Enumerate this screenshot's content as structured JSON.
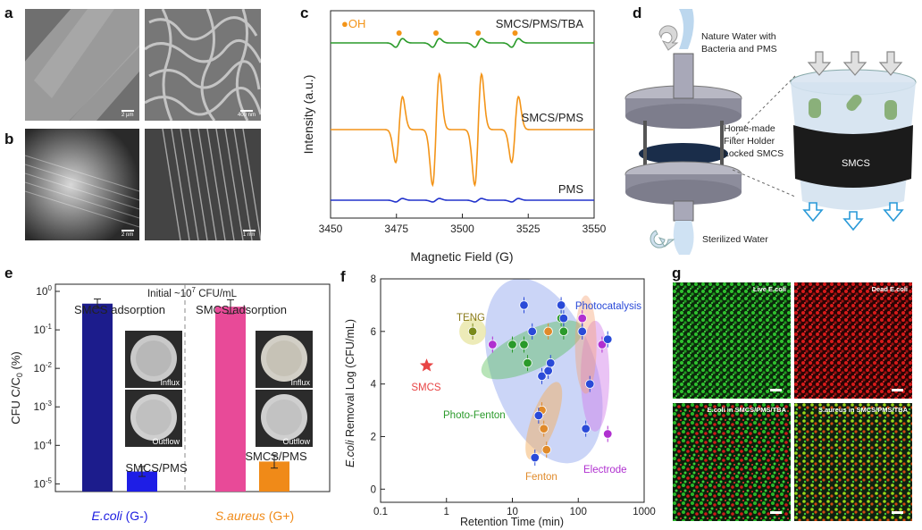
{
  "panel_letters": [
    "a",
    "b",
    "c",
    "d",
    "e",
    "f",
    "g"
  ],
  "panel_a": {
    "scale_left": "2 µm",
    "scale_right": "400 nm"
  },
  "panel_b": {
    "scale_left": "2 nm",
    "scale_right": "1 nm"
  },
  "panel_c": {
    "legend": "●OH",
    "ylabel": "Intensity (a.u.)",
    "xlabel": "Magnetic Field (G)",
    "ticks": [
      "3450",
      "3475",
      "3500",
      "3525",
      "3550"
    ],
    "curve_labels": [
      "SMCS/PMS/TBA",
      "SMCS/PMS",
      "PMS"
    ]
  },
  "panel_d": {
    "labels": [
      "Nature Water with",
      "Bacteria and PMS",
      "Home-made",
      "Filter Holder",
      "Locked SMCS",
      "Sterilized Water",
      "SMCS"
    ]
  },
  "panel_e": {
    "header_prefix": "Initial ~10",
    "header_exp": "7",
    "header_suffix": " CFU/mL",
    "ylabel_main": "CFU C/C",
    "ylabel_sub": "0",
    "ylabel_tail": " (%)",
    "yticks": [
      {
        "base": "10",
        "exp": "0"
      },
      {
        "base": "10",
        "exp": "-1"
      },
      {
        "base": "10",
        "exp": "-2"
      },
      {
        "base": "10",
        "exp": "-3"
      },
      {
        "base": "10",
        "exp": "-4"
      },
      {
        "base": "10",
        "exp": "-5"
      }
    ],
    "bar_labels": [
      "SMCS adsorption",
      "SMCS adsorption",
      "SMCS/PMS",
      "SMCS/PMS"
    ],
    "photo_labels": [
      "Influx",
      "Outflow",
      "Influx",
      "Outflow"
    ],
    "groups": [
      {
        "species": "E.coli",
        "suffix": " (G-)",
        "color": "#1c1ce0"
      },
      {
        "species": "S.aureus",
        "suffix": " (G+)",
        "color": "#f08a18"
      }
    ]
  },
  "panel_f": {
    "ylabel_species": "E.coli",
    "ylabel_rest": " Removal Log (CFU/mL)",
    "xlabel": "Retention Time (min)",
    "xticks": [
      "0.1",
      "1",
      "10",
      "100",
      "1000"
    ],
    "yticks": [
      "0",
      "2",
      "4",
      "6",
      "8"
    ],
    "region_labels": [
      "TENG",
      "Photocatalysis",
      "SMCS",
      "Photo-Fenton",
      "Fenton",
      "Electrode"
    ]
  },
  "panel_g": {
    "labels": [
      "Live E.coli",
      "Dead E.coli",
      "E.coli in SMCS/PMS/TBA",
      "S.aureus in SMCS/PMS/TBA"
    ]
  },
  "chart_data": [
    {
      "panel": "c",
      "type": "line",
      "xlabel": "Magnetic Field (G)",
      "ylabel": "Intensity (a.u.)",
      "xlim": [
        3450,
        3550
      ],
      "series": [
        {
          "name": "SMCS/PMS/TBA",
          "color": "#2a9a2a",
          "line_positions": [
            3476,
            3490,
            3506,
            3520
          ],
          "relative_amplitude": 0.1
        },
        {
          "name": "SMCS/PMS",
          "color": "#f39418",
          "line_positions": [
            3476,
            3490,
            3506,
            3520
          ],
          "relative_amplitude": [
            0.6,
            1.0,
            1.0,
            0.6
          ]
        },
        {
          "name": "PMS",
          "color": "#2233cc",
          "line_positions": [
            3476,
            3490,
            3506,
            3520
          ],
          "relative_amplitude": 0.05
        }
      ],
      "markers": [
        3476,
        3490,
        3506,
        3520
      ]
    },
    {
      "panel": "e",
      "type": "bar",
      "log_scale": true,
      "ylim": [
        1e-05,
        1
      ],
      "categories": [
        "E.coli SMCS adsorption",
        "E.coli SMCS/PMS",
        "S.aureus SMCS adsorption",
        "S.aureus SMCS/PMS"
      ],
      "values": [
        0.48,
        2.1e-05,
        0.4,
        3.8e-05
      ],
      "errors_log": [
        0.12,
        0.13,
        0.18,
        0.17
      ],
      "colors": [
        "#1c1c8c",
        "#1e1ee6",
        "#e84a98",
        "#f08a18"
      ]
    },
    {
      "panel": "f",
      "type": "scatter",
      "x_log_scale": true,
      "xlim": [
        0.1,
        1000
      ],
      "ylim": [
        -0.5,
        8
      ],
      "series": [
        {
          "name": "SMCS",
          "marker": "star",
          "color": "#e84545",
          "points": [
            [
              0.5,
              4.7
            ]
          ]
        },
        {
          "name": "TENG",
          "color": "#7a8a1a",
          "points": [
            [
              2.5,
              6.0
            ]
          ]
        },
        {
          "name": "Photo-Fenton",
          "color": "#2a9a2a",
          "points": [
            [
              10,
              5.5
            ],
            [
              15,
              5.5
            ],
            [
              17,
              4.8
            ],
            [
              55,
              6.5
            ],
            [
              60,
              6.0
            ]
          ]
        },
        {
          "name": "Fenton",
          "color": "#e08a2a",
          "points": [
            [
              28,
              3.0
            ],
            [
              30,
              2.3
            ],
            [
              33,
              1.5
            ],
            [
              35,
              6.0
            ]
          ]
        },
        {
          "name": "Electrode",
          "color": "#b030d0",
          "points": [
            [
              5.0,
              5.5
            ],
            [
              230,
              5.5
            ],
            [
              280,
              2.1
            ],
            [
              115,
              6.5
            ]
          ]
        },
        {
          "name": "Photocatalysis",
          "color": "#2a4ad8",
          "points": [
            [
              15,
              7.0
            ],
            [
              20,
              6.0
            ],
            [
              22,
              1.2
            ],
            [
              25,
              2.8
            ],
            [
              28,
              4.3
            ],
            [
              35,
              4.5
            ],
            [
              38,
              4.8
            ],
            [
              55,
              7.0
            ],
            [
              60,
              6.5
            ],
            [
              115,
              6.0
            ],
            [
              130,
              2.3
            ],
            [
              150,
              4.0
            ],
            [
              280,
              5.7
            ]
          ]
        }
      ]
    }
  ]
}
